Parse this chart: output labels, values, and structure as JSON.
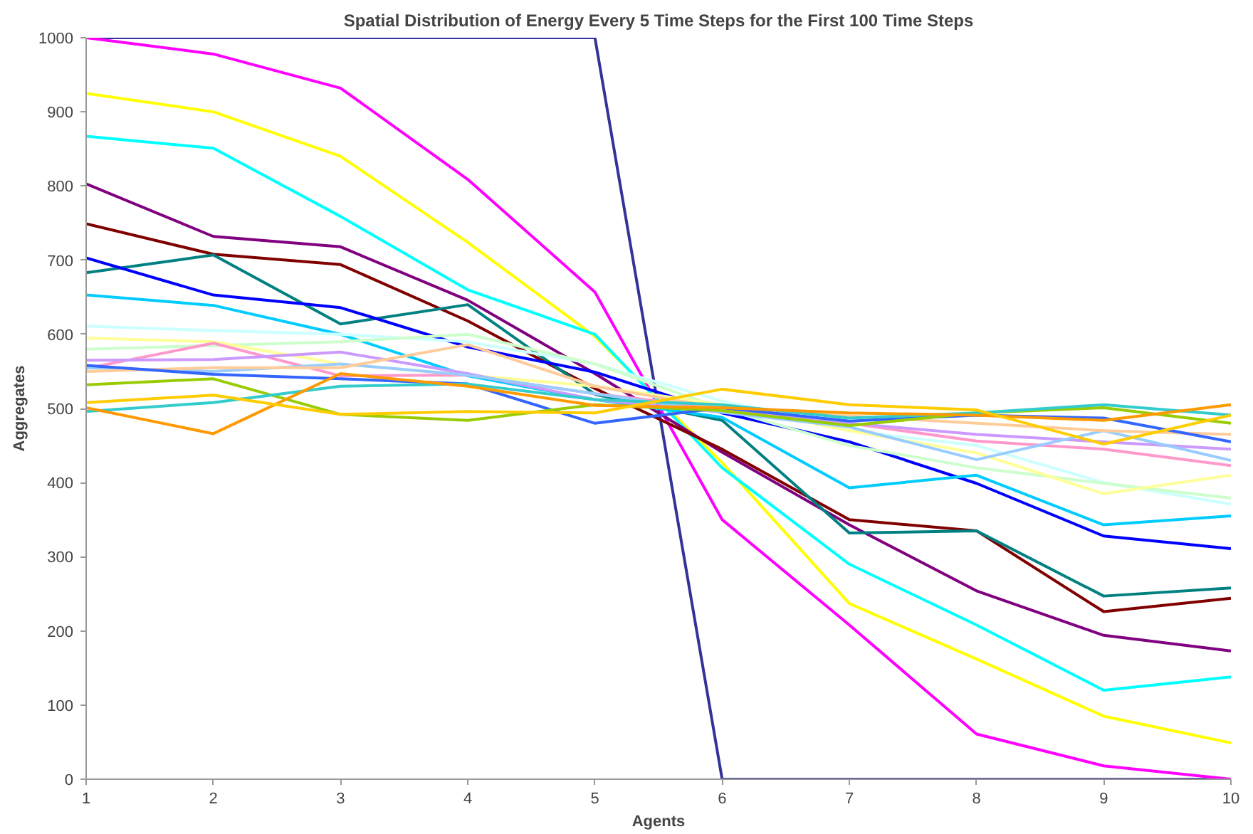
{
  "chart_data": {
    "type": "line",
    "title": "Spatial Distribution of Energy Every 5 Time Steps for the First 100 Time Steps",
    "xlabel": "Agents",
    "ylabel": "Aggregates",
    "categories": [
      "1",
      "2",
      "3",
      "4",
      "5",
      "6",
      "7",
      "8",
      "9",
      "10"
    ],
    "ylim": [
      0,
      1000
    ],
    "yticks": [
      0,
      100,
      200,
      300,
      400,
      500,
      600,
      700,
      800,
      900,
      1000
    ],
    "line_style": "solid",
    "series": [
      {
        "color": "#333399",
        "values": [
          1000,
          1000,
          1000,
          1000,
          1000,
          0,
          0,
          0,
          0,
          0
        ]
      },
      {
        "color": "#ff00ff",
        "values": [
          1000,
          978,
          932,
          809,
          657,
          350,
          208,
          61,
          18,
          0
        ]
      },
      {
        "color": "#ffff00",
        "values": [
          925,
          900,
          840,
          724,
          597,
          427,
          237,
          162,
          85,
          49
        ]
      },
      {
        "color": "#00ffff",
        "values": [
          867,
          851,
          759,
          660,
          600,
          420,
          290,
          208,
          120,
          138
        ]
      },
      {
        "color": "#800080",
        "values": [
          803,
          732,
          718,
          646,
          547,
          441,
          343,
          254,
          194,
          173
        ]
      },
      {
        "color": "#800000",
        "values": [
          749,
          708,
          694,
          618,
          527,
          445,
          350,
          335,
          226,
          244
        ]
      },
      {
        "color": "#008080",
        "values": [
          683,
          707,
          614,
          640,
          519,
          484,
          332,
          335,
          247,
          258
        ]
      },
      {
        "color": "#0000ff",
        "values": [
          703,
          653,
          636,
          583,
          549,
          494,
          455,
          399,
          328,
          311
        ]
      },
      {
        "color": "#00ccff",
        "values": [
          653,
          639,
          600,
          544,
          512,
          488,
          393,
          410,
          343,
          355
        ]
      },
      {
        "color": "#ccffff",
        "values": [
          611,
          605,
          600,
          590,
          560,
          510,
          470,
          450,
          400,
          371
        ]
      },
      {
        "color": "#ccffcc",
        "values": [
          580,
          585,
          590,
          600,
          560,
          500,
          450,
          420,
          399,
          379
        ]
      },
      {
        "color": "#ffff99",
        "values": [
          595,
          590,
          560,
          545,
          530,
          505,
          470,
          440,
          385,
          410
        ]
      },
      {
        "color": "#ff99cc",
        "values": [
          554,
          588,
          544,
          545,
          520,
          500,
          480,
          456,
          445,
          423
        ]
      },
      {
        "color": "#cc99ff",
        "values": [
          565,
          566,
          576,
          547,
          512,
          495,
          480,
          465,
          455,
          445
        ]
      },
      {
        "color": "#99ccff",
        "values": [
          555,
          550,
          560,
          545,
          520,
          495,
          475,
          431,
          470,
          430
        ]
      },
      {
        "color": "#ffcc99",
        "values": [
          550,
          555,
          555,
          586,
          530,
          500,
          490,
          480,
          470,
          465
        ]
      },
      {
        "color": "#3366ff",
        "values": [
          558,
          546,
          540,
          533,
          480,
          501,
          483,
          491,
          487,
          455
        ]
      },
      {
        "color": "#99cc00",
        "values": [
          532,
          540,
          492,
          484,
          505,
          497,
          477,
          494,
          501,
          480
        ]
      },
      {
        "color": "#33cccc",
        "values": [
          496,
          508,
          530,
          533,
          512,
          505,
          487,
          494,
          505,
          491
        ]
      },
      {
        "color": "#ff9900",
        "values": [
          501,
          466,
          547,
          530,
          504,
          501,
          494,
          491,
          484,
          505
        ]
      },
      {
        "color": "#ffcc00",
        "values": [
          508,
          518,
          492,
          496,
          494,
          526,
          505,
          498,
          452,
          491
        ]
      }
    ]
  }
}
